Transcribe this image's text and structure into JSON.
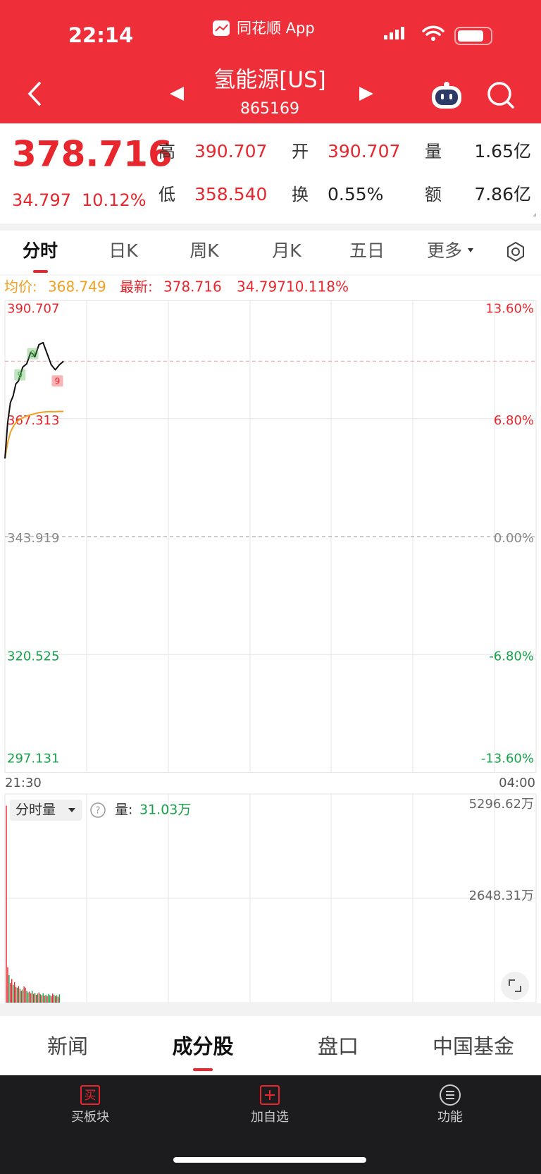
{
  "status_bar": {
    "time": "22:14",
    "app": "同花顺 App"
  },
  "header": {
    "title": "氢能源[US]",
    "code": "865169"
  },
  "quote": {
    "price": 378.716,
    "change": "34.797",
    "change_pct": "10.12%",
    "stats": [
      {
        "label": "高",
        "value": "390.707"
      },
      {
        "label": "开",
        "value": "390.707"
      },
      {
        "label": "量",
        "value": "1.65亿"
      },
      {
        "label": "低",
        "value": "358.540"
      },
      {
        "label": "换",
        "value": "0.55%"
      },
      {
        "label": "额",
        "value": "7.86亿"
      }
    ]
  },
  "tabs": [
    "分时",
    "日K",
    "周K",
    "月K",
    "五日",
    "更多"
  ],
  "info": {
    "avg_label": "均价:",
    "avg": "368.749",
    "latest_label": "最新:",
    "latest": "378.716",
    "change": "34.797",
    "change_pct": "10.118%"
  },
  "chart_data": [
    {
      "type": "line",
      "x": [
        0,
        2,
        4,
        6,
        8,
        10,
        13,
        16,
        19,
        22,
        25,
        28,
        31,
        34,
        37,
        40,
        43
      ],
      "xlim": [
        0,
        390
      ],
      "xticks": [
        {
          "value": 0,
          "label": "21:30"
        },
        {
          "value": 390,
          "label": "04:00"
        }
      ],
      "ylim": [
        297.131,
        390.707
      ],
      "yticks": [
        390.707,
        367.313,
        343.919,
        320.525,
        297.131
      ],
      "y2lim": [
        -13.6,
        13.6
      ],
      "y2ticks": [
        {
          "value": 13.6,
          "label": "13.60%"
        },
        {
          "value": 6.8,
          "label": "6.80%"
        },
        {
          "value": 0,
          "label": "0.00%"
        },
        {
          "value": -6.8,
          "label": "-6.80%"
        },
        {
          "value": -13.6,
          "label": "-13.60%"
        }
      ],
      "series": [
        {
          "color": "#111111",
          "values": [
            359.4,
            366.5,
            370.5,
            371.8,
            374.2,
            374.8,
            377.5,
            378.2,
            380.5,
            379.6,
            382.0,
            382.4,
            380.2,
            378.0,
            377.0,
            378.0,
            378.7
          ]
        },
        {
          "color": "#f0a020",
          "values": [
            359.4,
            362.5,
            364.6,
            365.7,
            366.5,
            367.0,
            367.5,
            367.8,
            368.1,
            368.3,
            368.5,
            368.6,
            368.7,
            368.7,
            368.7,
            368.75,
            368.749
          ]
        }
      ],
      "annotations": [
        {
          "x": 20.4,
          "y": 380.2,
          "label": "9",
          "color": "#4caf50"
        },
        {
          "x": 11,
          "y": 376.0,
          "label": "9",
          "color": "#4caf50"
        },
        {
          "x": 38.5,
          "y": 374.8,
          "label": "9",
          "color": "#e8262e"
        }
      ]
    },
    {
      "type": "bar",
      "selector": "分时量",
      "current_label": "量:",
      "current_value": "31.03万",
      "x": [
        0,
        1,
        2,
        3,
        4,
        5,
        6,
        7,
        8,
        9,
        10,
        11,
        12,
        13,
        14,
        15,
        16,
        17,
        18,
        19,
        20,
        21,
        22,
        23,
        24,
        25,
        26,
        27,
        28,
        29,
        30,
        31,
        32,
        33,
        34,
        35,
        36,
        37,
        38,
        39
      ],
      "xlim": [
        0,
        390
      ],
      "ylim": [
        0,
        5296.62
      ],
      "yticks": [
        {
          "value": 2648.31,
          "label": "2648.31万"
        },
        {
          "value": 5296.62,
          "label": "5296.62万"
        }
      ],
      "series": [
        {
          "color": "#e8262e",
          "values": [
            5000,
            900,
            null,
            500,
            600,
            null,
            520,
            400,
            null,
            420,
            null,
            300,
            null,
            410,
            380,
            null,
            null,
            280,
            240,
            null,
            220,
            null,
            200,
            null,
            260,
            null,
            190,
            null,
            180,
            null,
            170,
            null,
            null,
            160,
            230,
            null,
            170,
            null,
            150,
            null
          ]
        },
        {
          "color": "#19a04b",
          "values": [
            null,
            null,
            700,
            null,
            null,
            450,
            null,
            null,
            380,
            null,
            350,
            null,
            330,
            null,
            null,
            300,
            260,
            null,
            null,
            300,
            null,
            250,
            null,
            230,
            null,
            210,
            null,
            240,
            null,
            200,
            null,
            220,
            190,
            null,
            null,
            200,
            null,
            190,
            null,
            210
          ]
        }
      ]
    }
  ],
  "bottom_tabs": [
    "新闻",
    "成分股",
    "盘口",
    "中国基金"
  ],
  "toolbar": {
    "items": [
      {
        "icon": "买",
        "label": "买板块"
      },
      {
        "label": "加自选"
      },
      {
        "label": "功能"
      }
    ]
  }
}
